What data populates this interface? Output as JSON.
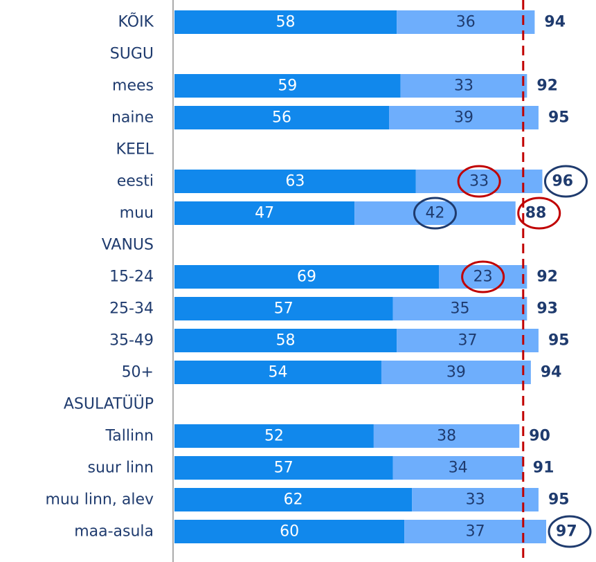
{
  "chart_data": {
    "type": "stacked_bar_horizontal",
    "categories": [
      "KÕIK",
      "SUGU",
      "mees",
      "naine",
      "KEEL",
      "eesti",
      "muu",
      "VANUS",
      "15-24",
      "25-34",
      "35-49",
      "50+",
      "ASULATÜÜP",
      "Tallinn",
      "suur linn",
      "muu linn, alev",
      "maa-asula"
    ],
    "series": [
      {
        "color": "#1188ec",
        "label_color": "#ffffff",
        "values": [
          58,
          null,
          59,
          56,
          null,
          63,
          47,
          null,
          69,
          57,
          58,
          54,
          null,
          52,
          57,
          62,
          60
        ]
      },
      {
        "color": "#6eaefc",
        "label_color": "#1f3b6e",
        "values": [
          36,
          null,
          33,
          39,
          null,
          33,
          42,
          null,
          23,
          35,
          37,
          39,
          null,
          38,
          34,
          33,
          37
        ]
      }
    ],
    "totals": [
      94,
      null,
      92,
      95,
      null,
      96,
      88,
      null,
      92,
      93,
      95,
      94,
      null,
      90,
      91,
      95,
      97
    ],
    "xlim": [
      0,
      110
    ],
    "reference_line": {
      "value": 91,
      "color": "#c00000"
    },
    "highlights": [
      {
        "row": 5,
        "part": 1,
        "color": "#c00000"
      },
      {
        "row": 5,
        "part": "total",
        "color": "#1f3b6e"
      },
      {
        "row": 6,
        "part": 1,
        "color": "#1f3b6e"
      },
      {
        "row": 6,
        "part": "total",
        "color": "#c00000"
      },
      {
        "row": 8,
        "part": 1,
        "color": "#c00000"
      },
      {
        "row": 16,
        "part": "total",
        "color": "#1f3b6e"
      }
    ]
  }
}
